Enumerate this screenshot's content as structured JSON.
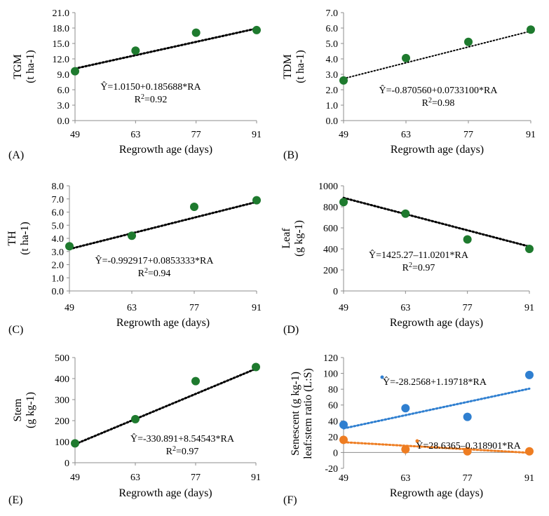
{
  "colors": {
    "green": "#1e7a2e",
    "blue": "#2f7fd0",
    "orange": "#ee7d22",
    "axis": "#000000"
  },
  "chart_data": [
    {
      "panel": "(A)",
      "type": "scatter",
      "xlabel": "Regrowth age (days)",
      "ylabel": [
        "TGM",
        "(t ha-1)"
      ],
      "x_ticks": [
        49,
        63,
        77,
        91
      ],
      "xlim": [
        49,
        91
      ],
      "ylim": [
        0,
        21
      ],
      "y_ticks": [
        "0.0",
        "3.0",
        "6.0",
        "9.0",
        "12.0",
        "15.0",
        "18.0",
        "21.0"
      ],
      "series": [
        {
          "color": "green",
          "x": [
            49,
            63,
            77,
            91
          ],
          "y": [
            9.6,
            13.6,
            17.1,
            17.6
          ],
          "trend": [
            1.015,
            0.185688
          ],
          "equation": "Ŷ=1.0150+0.185688*RA",
          "r2": "=0.92"
        }
      ]
    },
    {
      "panel": "(B)",
      "type": "scatter",
      "xlabel": "Regrowth age (days)",
      "ylabel": [
        "TDM",
        "(t ha-1)"
      ],
      "x_ticks": [
        49,
        63,
        77,
        91
      ],
      "xlim": [
        49,
        91
      ],
      "ylim": [
        0,
        7
      ],
      "y_ticks": [
        "0.0",
        "1.0",
        "2.0",
        "3.0",
        "4.0",
        "5.0",
        "6.0",
        "7.0"
      ],
      "series": [
        {
          "color": "green",
          "x": [
            49,
            63,
            77,
            91
          ],
          "y": [
            2.6,
            4.05,
            5.1,
            5.9
          ],
          "trend": [
            -0.87056,
            0.07331
          ],
          "equation": "Ŷ=-0.870560+0.0733100*RA",
          "r2": "=0.98"
        }
      ]
    },
    {
      "panel": "(C)",
      "type": "scatter",
      "xlabel": "Regrowth age (days)",
      "ylabel": [
        "TH",
        "(t ha-1)"
      ],
      "x_ticks": [
        49,
        63,
        77,
        91
      ],
      "xlim": [
        49,
        91
      ],
      "ylim": [
        0,
        8
      ],
      "y_ticks": [
        "0.0",
        "1.0",
        "2.0",
        "3.0",
        "4.0",
        "5.0",
        "6.0",
        "7.0",
        "8.0"
      ],
      "series": [
        {
          "color": "green",
          "x": [
            49,
            63,
            77,
            91
          ],
          "y": [
            3.4,
            4.2,
            6.4,
            6.9
          ],
          "trend": [
            -0.992917,
            0.0853333
          ],
          "equation": "Ŷ=-0.992917+0.0853333*RA",
          "r2": "=0.94"
        }
      ]
    },
    {
      "panel": "(D)",
      "type": "scatter",
      "xlabel": "Regrowth age (days)",
      "ylabel": [
        "Leaf",
        "(g kg-1)"
      ],
      "x_ticks": [
        49,
        63,
        77,
        91
      ],
      "xlim": [
        49,
        91
      ],
      "ylim": [
        0,
        1000
      ],
      "y_ticks": [
        "0",
        "200",
        "400",
        "600",
        "800",
        "1000"
      ],
      "series": [
        {
          "color": "green",
          "x": [
            49,
            63,
            77,
            91
          ],
          "y": [
            845,
            735,
            490,
            400
          ],
          "trend": [
            1425.27,
            -11.0201
          ],
          "equation": "Ŷ=1425.27–11.0201*RA",
          "r2": "=0.97"
        }
      ]
    },
    {
      "panel": "(E)",
      "type": "scatter",
      "xlabel": "Regrowth age (days)",
      "ylabel": [
        "Stem",
        "(g kg-1)"
      ],
      "x_ticks": [
        49,
        63,
        77,
        91
      ],
      "xlim": [
        49,
        91
      ],
      "ylim": [
        0,
        500
      ],
      "y_ticks": [
        "0",
        "100",
        "200",
        "300",
        "400",
        "500"
      ],
      "series": [
        {
          "color": "green",
          "x": [
            49,
            63,
            77,
            91
          ],
          "y": [
            92,
            207,
            388,
            455
          ],
          "trend": [
            -330.891,
            8.54543
          ],
          "equation": "Ŷ=-330.891+8.54543*RA",
          "r2": "=0.97"
        }
      ]
    },
    {
      "panel": "(F)",
      "type": "scatter",
      "xlabel": "Regrowth age (days)",
      "ylabel": [
        "Senescent  (g kg-1)",
        "leaf:stem ratio (L:S)"
      ],
      "x_ticks": [
        49,
        63,
        77,
        91
      ],
      "xlim": [
        49,
        91
      ],
      "ylim": [
        -20,
        120
      ],
      "y_ticks": [
        "-20",
        "0",
        "20",
        "40",
        "60",
        "80",
        "100",
        "120"
      ],
      "series": [
        {
          "color": "blue",
          "x": [
            49,
            63,
            77,
            91
          ],
          "y": [
            35,
            56,
            45,
            98
          ],
          "trend": [
            -28.2568,
            1.19718
          ],
          "equation": "Ŷ=-28.2568+1.19718*RA",
          "r2": ""
        },
        {
          "color": "orange",
          "x": [
            49,
            63,
            77,
            91
          ],
          "y": [
            16,
            4,
            1.5,
            1.5
          ],
          "trend": [
            28.6365,
            -0.318901
          ],
          "equation": "Ŷ=28.6365–0.318901*RA",
          "r2": ""
        }
      ]
    }
  ]
}
